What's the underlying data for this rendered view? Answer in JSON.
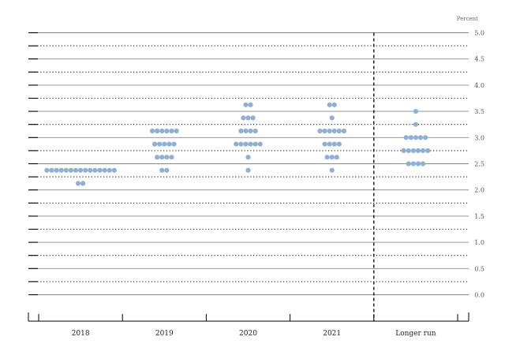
{
  "chart_data": {
    "type": "scatter",
    "ylabel": "Percent",
    "ylim": [
      0,
      5
    ],
    "y_ticks": [
      "0.0",
      "0.5",
      "1.0",
      "1.5",
      "2.0",
      "2.5",
      "3.0",
      "3.5",
      "4.0",
      "4.5",
      "5.0"
    ],
    "categories": [
      "2018",
      "2019",
      "2020",
      "2021",
      "Longer run"
    ],
    "series": [
      {
        "category": "2018",
        "points": [
          {
            "y": 2.375,
            "count": 15
          },
          {
            "y": 2.125,
            "count": 2
          }
        ]
      },
      {
        "category": "2019",
        "points": [
          {
            "y": 3.125,
            "count": 6
          },
          {
            "y": 2.875,
            "count": 5
          },
          {
            "y": 2.625,
            "count": 4
          },
          {
            "y": 2.375,
            "count": 2
          }
        ]
      },
      {
        "category": "2020",
        "points": [
          {
            "y": 3.625,
            "count": 2
          },
          {
            "y": 3.375,
            "count": 3
          },
          {
            "y": 3.125,
            "count": 4
          },
          {
            "y": 2.875,
            "count": 6
          },
          {
            "y": 2.625,
            "count": 1
          },
          {
            "y": 2.375,
            "count": 1
          }
        ]
      },
      {
        "category": "2021",
        "points": [
          {
            "y": 3.625,
            "count": 2
          },
          {
            "y": 3.375,
            "count": 1
          },
          {
            "y": 3.125,
            "count": 6
          },
          {
            "y": 2.875,
            "count": 4
          },
          {
            "y": 2.625,
            "count": 3
          },
          {
            "y": 2.375,
            "count": 1
          }
        ]
      },
      {
        "category": "Longer run",
        "points": [
          {
            "y": 3.5,
            "count": 1
          },
          {
            "y": 3.25,
            "count": 1
          },
          {
            "y": 3.0,
            "count": 5
          },
          {
            "y": 2.75,
            "count": 6
          },
          {
            "y": 2.5,
            "count": 4
          }
        ]
      }
    ],
    "dot_color": "#8fb0d2",
    "grid": true
  }
}
